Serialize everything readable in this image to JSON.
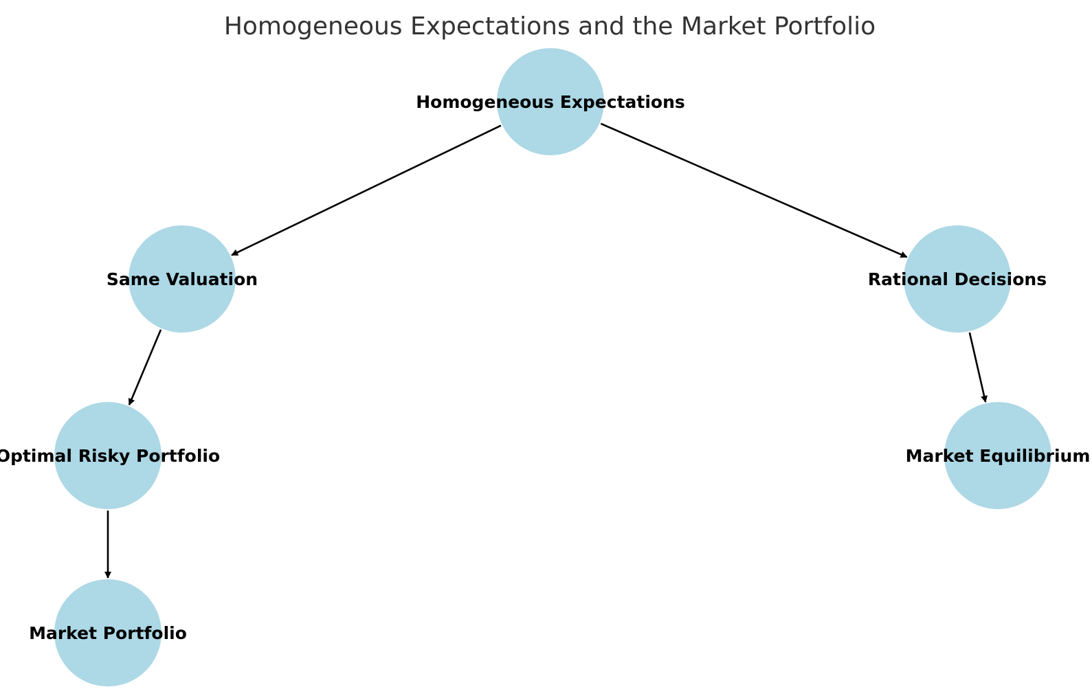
{
  "title": "Homogeneous Expectations and the Market Portfolio",
  "colors": {
    "node_fill": "#add8e6",
    "edge": "#000000",
    "title": "#333333",
    "label": "#000000",
    "background": "#ffffff"
  },
  "nodes": [
    {
      "id": "he",
      "label": "Homogeneous Expectations"
    },
    {
      "id": "sv",
      "label": "Same Valuation"
    },
    {
      "id": "rd",
      "label": "Rational Decisions"
    },
    {
      "id": "orp",
      "label": "Optimal Risky Portfolio"
    },
    {
      "id": "me",
      "label": "Market Equilibrium"
    },
    {
      "id": "mp",
      "label": "Market Portfolio"
    }
  ],
  "edges": [
    {
      "from": "he",
      "to": "sv"
    },
    {
      "from": "he",
      "to": "rd"
    },
    {
      "from": "sv",
      "to": "orp"
    },
    {
      "from": "rd",
      "to": "me"
    },
    {
      "from": "orp",
      "to": "mp"
    }
  ]
}
